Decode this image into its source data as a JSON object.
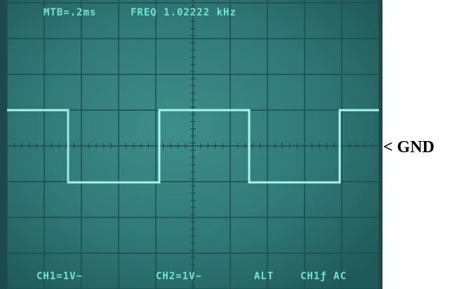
{
  "header": {
    "timebase": "MTB=.2ms",
    "frequency": "FREQ 1.02222 kHz"
  },
  "footer": {
    "ch1": "CH1=1V∼",
    "ch2": "CH2=1V∼",
    "mode": "ALT",
    "trigger": "CH1ƒ AC"
  },
  "marker": "< GND"
}
